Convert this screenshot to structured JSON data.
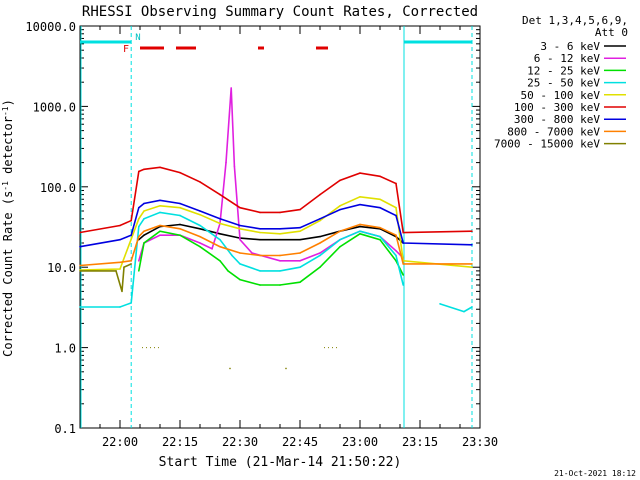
{
  "chart_data": {
    "type": "line",
    "title": "RHESSI Observing Summary Count Rates, Corrected",
    "xlabel": "Start Time (21-Mar-14 21:50:22)",
    "ylabel": "Corrected Count Rate (s",
    "ylabel_sup": "-1",
    "ylabel_tail": " detector",
    "ylabel_sup2": "-1",
    "ylabel_close": ")",
    "y_scale": "log",
    "ylim": [
      0.1,
      10000
    ],
    "xlim": [
      "21:50",
      "23:30"
    ],
    "y_ticks": [
      {
        "v": 10000,
        "label": "10000.0"
      },
      {
        "v": 1000,
        "label": "1000.0"
      },
      {
        "v": 100,
        "label": "100.0"
      },
      {
        "v": 10,
        "label": "10.0"
      },
      {
        "v": 1,
        "label": "1.0"
      },
      {
        "v": 0.1,
        "label": "0.1"
      }
    ],
    "x_ticks": [
      {
        "m": 10,
        "label": "22:00"
      },
      {
        "m": 25,
        "label": "22:15"
      },
      {
        "m": 40,
        "label": "22:30"
      },
      {
        "m": 55,
        "label": "22:45"
      },
      {
        "m": 70,
        "label": "23:00"
      },
      {
        "m": 85,
        "label": "23:15"
      },
      {
        "m": 100,
        "label": "23:30"
      }
    ],
    "legend_header": [
      "Det 1,3,4,5,6,9,",
      "Att 0"
    ],
    "legend_position": "right",
    "series": [
      {
        "name": "3 - 6 keV",
        "color": "#000000",
        "points": [
          [
            0,
            null
          ],
          [
            14.7,
            22
          ],
          [
            16,
            25
          ],
          [
            20,
            32
          ],
          [
            25,
            34
          ],
          [
            30,
            30
          ],
          [
            35,
            26
          ],
          [
            40,
            23
          ],
          [
            45,
            22
          ],
          [
            50,
            22
          ],
          [
            55,
            22
          ],
          [
            60,
            24
          ],
          [
            65,
            28
          ],
          [
            70,
            32
          ],
          [
            75,
            30
          ],
          [
            79,
            24
          ],
          [
            80.8,
            20
          ],
          [
            82,
            null
          ]
        ]
      },
      {
        "name": "6 - 12 keV",
        "color": "#e020e0",
        "points": [
          [
            14.7,
            12
          ],
          [
            16,
            20
          ],
          [
            20,
            25
          ],
          [
            25,
            25
          ],
          [
            30,
            20
          ],
          [
            33,
            17
          ],
          [
            35,
            35
          ],
          [
            36.5,
            200
          ],
          [
            37.8,
            1700
          ],
          [
            38.6,
            180
          ],
          [
            40,
            22
          ],
          [
            43,
            15
          ],
          [
            50,
            12
          ],
          [
            55,
            12
          ],
          [
            60,
            15
          ],
          [
            65,
            22
          ],
          [
            70,
            28
          ],
          [
            75,
            24
          ],
          [
            79,
            16
          ],
          [
            80.8,
            13
          ]
        ]
      },
      {
        "name": "12 - 25 keV",
        "color": "#00e000",
        "points": [
          [
            14.7,
            9
          ],
          [
            16,
            20
          ],
          [
            20,
            28
          ],
          [
            25,
            25
          ],
          [
            30,
            18
          ],
          [
            35,
            12
          ],
          [
            37,
            9
          ],
          [
            40,
            7
          ],
          [
            45,
            6
          ],
          [
            50,
            6
          ],
          [
            55,
            6.5
          ],
          [
            60,
            10
          ],
          [
            65,
            18
          ],
          [
            70,
            26
          ],
          [
            75,
            22
          ],
          [
            79,
            12
          ],
          [
            80.8,
            8
          ]
        ]
      },
      {
        "name": "25 - 50 keV",
        "color": "#00e0e0",
        "points": [
          [
            0,
            3.2
          ],
          [
            10,
            3.2
          ],
          [
            12.8,
            3.6
          ],
          [
            14.7,
            32
          ],
          [
            16,
            40
          ],
          [
            20,
            48
          ],
          [
            25,
            44
          ],
          [
            30,
            33
          ],
          [
            35,
            22
          ],
          [
            38,
            14
          ],
          [
            40,
            11
          ],
          [
            45,
            9
          ],
          [
            50,
            9
          ],
          [
            55,
            10
          ],
          [
            60,
            14
          ],
          [
            65,
            22
          ],
          [
            70,
            28
          ],
          [
            75,
            24
          ],
          [
            79,
            14
          ],
          [
            80.8,
            6
          ],
          [
            84,
            null
          ],
          [
            90,
            3.5
          ],
          [
            96,
            2.8
          ],
          [
            98,
            3.2
          ]
        ]
      },
      {
        "name": "50 - 100 keV",
        "color": "#e0e000",
        "points": [
          [
            0,
            9.2
          ],
          [
            10,
            9.5
          ],
          [
            14.7,
            40
          ],
          [
            16,
            50
          ],
          [
            20,
            58
          ],
          [
            25,
            55
          ],
          [
            30,
            45
          ],
          [
            35,
            35
          ],
          [
            40,
            30
          ],
          [
            45,
            27
          ],
          [
            50,
            26
          ],
          [
            55,
            28
          ],
          [
            60,
            38
          ],
          [
            65,
            58
          ],
          [
            70,
            75
          ],
          [
            75,
            70
          ],
          [
            79,
            55
          ],
          [
            80.8,
            12
          ],
          [
            98,
            10
          ]
        ]
      },
      {
        "name": "100 - 300 keV",
        "color": "#e00000",
        "points": [
          [
            0,
            27
          ],
          [
            10,
            33
          ],
          [
            12.8,
            38
          ],
          [
            14.7,
            155
          ],
          [
            16,
            165
          ],
          [
            20,
            175
          ],
          [
            25,
            150
          ],
          [
            30,
            115
          ],
          [
            35,
            80
          ],
          [
            40,
            55
          ],
          [
            45,
            48
          ],
          [
            50,
            48
          ],
          [
            55,
            52
          ],
          [
            60,
            80
          ],
          [
            65,
            120
          ],
          [
            70,
            148
          ],
          [
            75,
            135
          ],
          [
            79,
            110
          ],
          [
            80.8,
            27
          ],
          [
            98,
            28
          ]
        ]
      },
      {
        "name": "300 - 800 keV",
        "color": "#0000e0",
        "points": [
          [
            0,
            18
          ],
          [
            10,
            22
          ],
          [
            12.8,
            25
          ],
          [
            14.7,
            55
          ],
          [
            16,
            62
          ],
          [
            20,
            68
          ],
          [
            25,
            62
          ],
          [
            30,
            50
          ],
          [
            35,
            40
          ],
          [
            40,
            33
          ],
          [
            45,
            30
          ],
          [
            50,
            30
          ],
          [
            55,
            31
          ],
          [
            60,
            40
          ],
          [
            65,
            52
          ],
          [
            70,
            60
          ],
          [
            75,
            55
          ],
          [
            79,
            44
          ],
          [
            80.8,
            20
          ],
          [
            98,
            19
          ]
        ]
      },
      {
        "name": "800 - 7000 keV",
        "color": "#ff8000",
        "points": [
          [
            0,
            10.5
          ],
          [
            10,
            11.5
          ],
          [
            12.8,
            12
          ],
          [
            14.7,
            24
          ],
          [
            16,
            28
          ],
          [
            20,
            33
          ],
          [
            25,
            30
          ],
          [
            30,
            24
          ],
          [
            35,
            18
          ],
          [
            40,
            15
          ],
          [
            45,
            14
          ],
          [
            50,
            14
          ],
          [
            55,
            15
          ],
          [
            60,
            20
          ],
          [
            65,
            28
          ],
          [
            70,
            34
          ],
          [
            75,
            31
          ],
          [
            79,
            25
          ],
          [
            80.8,
            11
          ],
          [
            98,
            11
          ]
        ]
      },
      {
        "name": "7000 - 15000 keV",
        "color": "#808000",
        "points": [
          [
            0,
            9
          ],
          [
            9,
            9
          ],
          [
            10.5,
            5
          ],
          [
            11,
            10
          ],
          [
            12.8,
            11
          ],
          [
            14.7,
            null
          ],
          [
            37.5,
            0.55
          ],
          [
            38.2,
            null
          ],
          [
            51.5,
            0.55
          ],
          [
            52.2,
            null
          ]
        ]
      }
    ],
    "markers": {
      "flags": {
        "F": "F",
        "N": "N"
      },
      "saa_bars": [
        [
          0,
          12.8
        ],
        [
          81,
          98
        ]
      ],
      "flare_bars": [
        [
          15,
          21
        ],
        [
          24,
          29
        ],
        [
          44.5,
          46
        ],
        [
          59,
          62
        ]
      ],
      "attenuator_lines": [
        12.8,
        81,
        98
      ]
    },
    "dotted_marks": [
      [
        15.5,
        20
      ],
      [
        61,
        65
      ]
    ]
  },
  "footer": {
    "date": "21-Oct-2021 18:12"
  }
}
